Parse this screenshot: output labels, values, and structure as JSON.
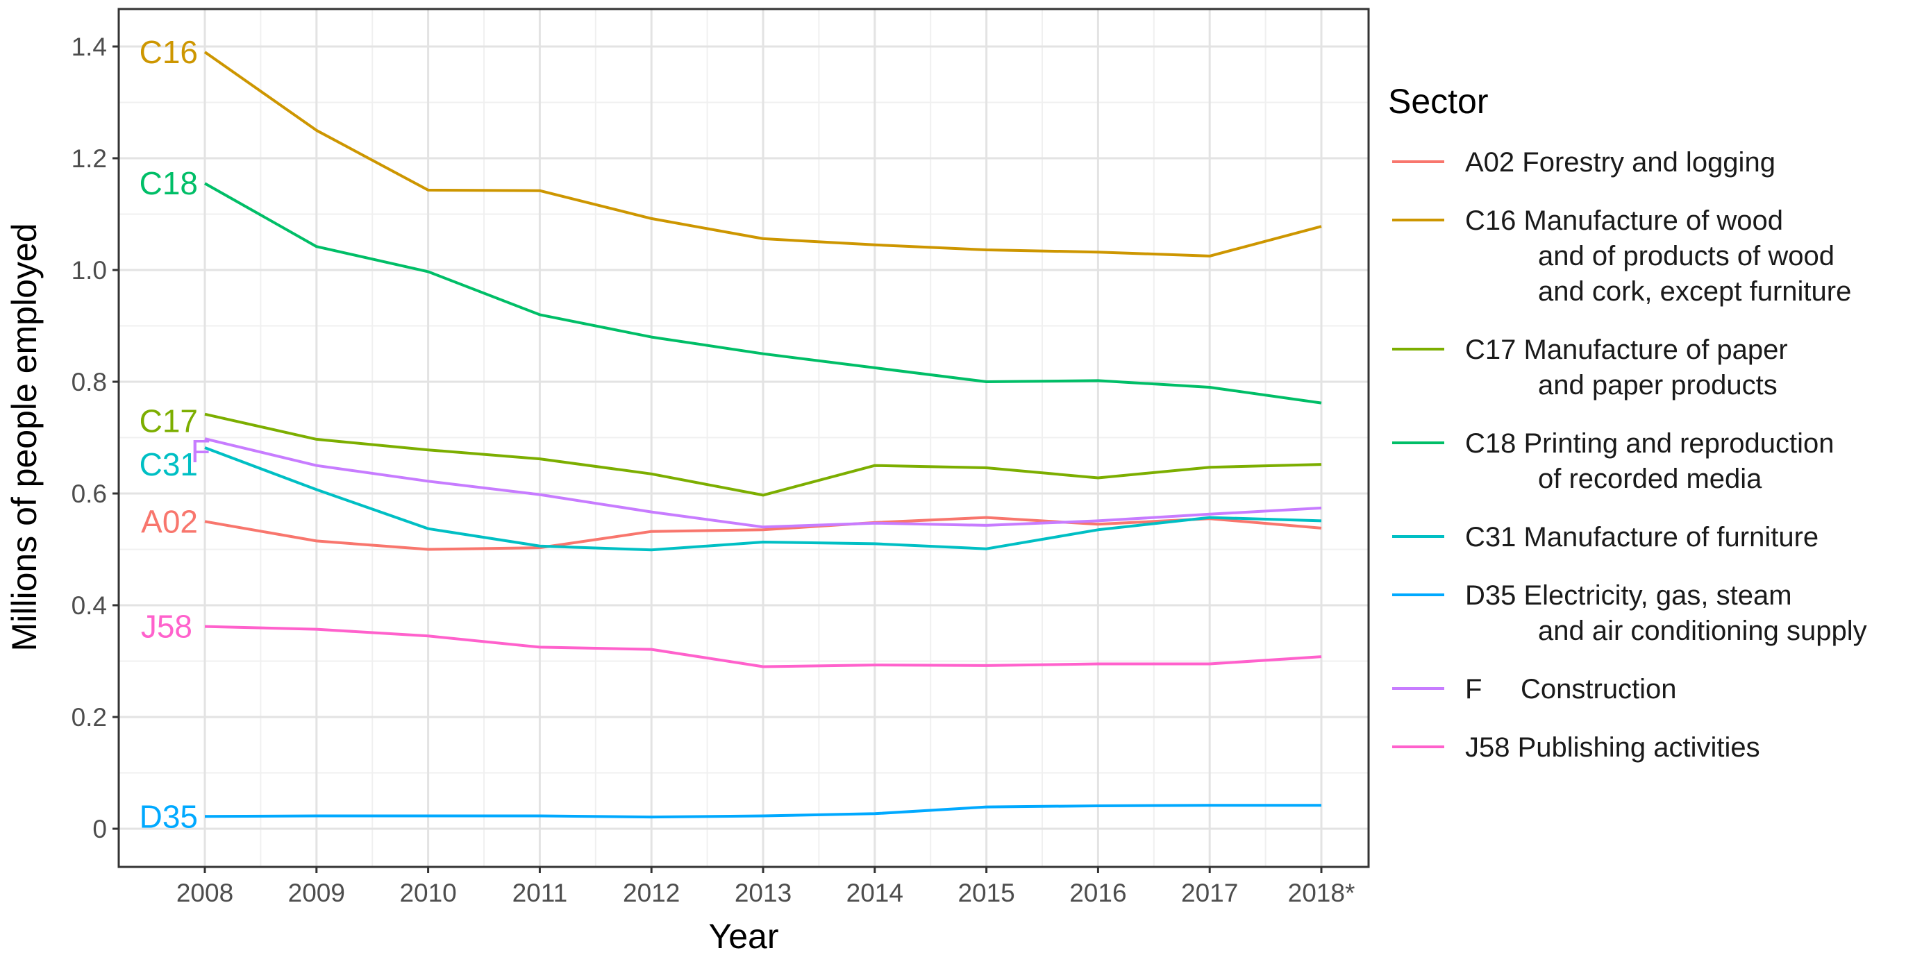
{
  "chart_data": {
    "type": "line",
    "title": "",
    "xlabel": "Year",
    "ylabel": "Millions of people employed",
    "x": [
      "2008",
      "2009",
      "2010",
      "2011",
      "2012",
      "2013",
      "2014",
      "2015",
      "2016",
      "2017",
      "2018*"
    ],
    "yticks": [
      "0",
      "0.2",
      "0.4",
      "0.6",
      "0.8",
      "1.0",
      "1.2",
      "1.4"
    ],
    "ylim": [
      -0.07,
      1.45
    ],
    "grid": true,
    "legend": {
      "title": "Sector",
      "placement": "right"
    },
    "series": [
      {
        "code": "A02",
        "legend_lines": [
          "A02 Forestry and logging"
        ],
        "color": "#F8766D",
        "values": [
          0.55,
          0.515,
          0.5,
          0.503,
          0.532,
          0.535,
          0.548,
          0.557,
          0.545,
          0.555,
          0.538
        ]
      },
      {
        "code": "C16",
        "legend_lines": [
          "C16 Manufacture of wood",
          "and of products of wood",
          "and cork, except furniture"
        ],
        "color": "#CD9600",
        "values": [
          1.39,
          1.25,
          1.143,
          1.142,
          1.092,
          1.056,
          1.045,
          1.036,
          1.032,
          1.025,
          1.078
        ]
      },
      {
        "code": "C17",
        "legend_lines": [
          "C17 Manufacture of paper",
          "and paper products"
        ],
        "color": "#7CAE00",
        "values": [
          0.742,
          0.697,
          0.678,
          0.662,
          0.635,
          0.597,
          0.65,
          0.646,
          0.628,
          0.647,
          0.652
        ]
      },
      {
        "code": "C18",
        "legend_lines": [
          "C18 Printing and reproduction",
          "of recorded media"
        ],
        "color": "#00BE67",
        "values": [
          1.155,
          1.042,
          0.997,
          0.92,
          0.88,
          0.85,
          0.825,
          0.8,
          0.802,
          0.79,
          0.762
        ]
      },
      {
        "code": "C31",
        "legend_lines": [
          "C31 Manufacture of furniture"
        ],
        "color": "#00BFC4",
        "values": [
          0.682,
          0.607,
          0.537,
          0.506,
          0.499,
          0.513,
          0.51,
          0.501,
          0.535,
          0.557,
          0.551
        ]
      },
      {
        "code": "D35",
        "legend_lines": [
          "D35 Electricity, gas, steam",
          "and air conditioning supply"
        ],
        "color": "#00A9FF",
        "values": [
          0.022,
          0.023,
          0.023,
          0.023,
          0.021,
          0.023,
          0.027,
          0.039,
          0.041,
          0.042,
          0.042
        ]
      },
      {
        "code": "F",
        "legend_lines": [
          "F     Construction"
        ],
        "color": "#C77CFF",
        "values": [
          0.698,
          0.65,
          0.622,
          0.598,
          0.567,
          0.54,
          0.547,
          0.543,
          0.551,
          0.563,
          0.574
        ]
      },
      {
        "code": "J58",
        "legend_lines": [
          "J58 Publishing activities"
        ],
        "color": "#FF61CC",
        "values": [
          0.362,
          0.357,
          0.345,
          0.325,
          0.321,
          0.29,
          0.293,
          0.292,
          0.295,
          0.295,
          0.308
        ]
      }
    ]
  }
}
